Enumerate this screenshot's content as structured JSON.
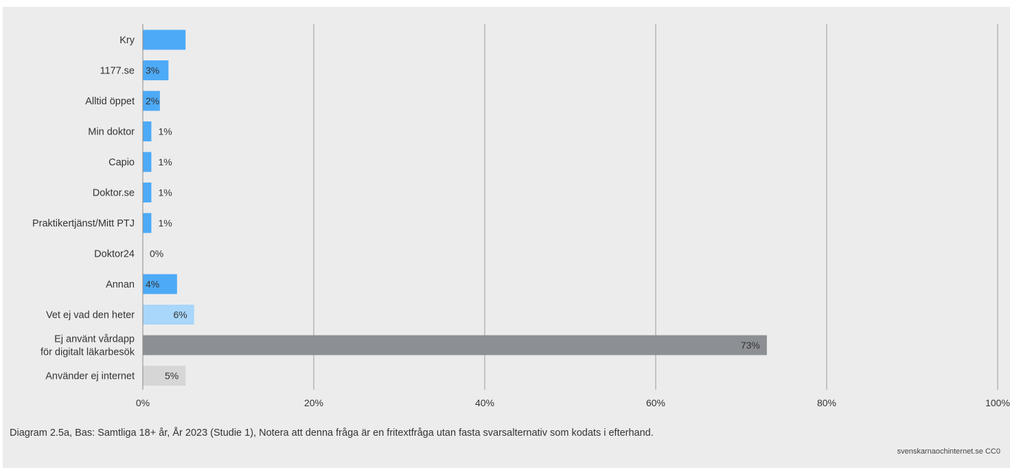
{
  "chart_data": {
    "type": "bar",
    "orientation": "horizontal",
    "categories": [
      "Kry",
      "1177.se",
      "Alltid öppet",
      "Min doktor",
      "Capio",
      "Doktor.se",
      "Praktikertjänst/Mitt PTJ",
      "Doktor24",
      "Annan",
      "Vet ej vad den heter",
      "Ej använt vårdapp för digitalt läkarbesök",
      "Använder ej internet"
    ],
    "values": [
      5,
      3,
      2,
      1,
      1,
      1,
      1,
      0,
      4,
      6,
      73,
      5
    ],
    "data_labels": [
      "",
      "3%",
      "2%",
      "1%",
      "1%",
      "1%",
      "1%",
      "0%",
      "4%",
      "6%",
      "73%",
      "5%"
    ],
    "bar_colors": [
      "#4daaf7",
      "#4daaf7",
      "#4daaf7",
      "#4daaf7",
      "#4daaf7",
      "#4daaf7",
      "#4daaf7",
      "#4daaf7",
      "#4daaf7",
      "#a9d6fb",
      "#8c8f93",
      "#d6d6d6"
    ],
    "xlim": [
      0,
      100
    ],
    "xticks": [
      0,
      20,
      40,
      60,
      80,
      100
    ],
    "xtick_labels": [
      "0%",
      "20%",
      "40%",
      "60%",
      "80%",
      "100%"
    ],
    "grid": true,
    "title": "",
    "xlabel": "",
    "ylabel": ""
  },
  "caption": "Diagram 2.5a, Bas: Samtliga 18+ år, År 2023 (Studie 1), Notera att denna fråga är en fritextfråga utan fasta svarsalternativ som kodats i efterhand.",
  "source": "svenskarnaochinternet.se CC0"
}
